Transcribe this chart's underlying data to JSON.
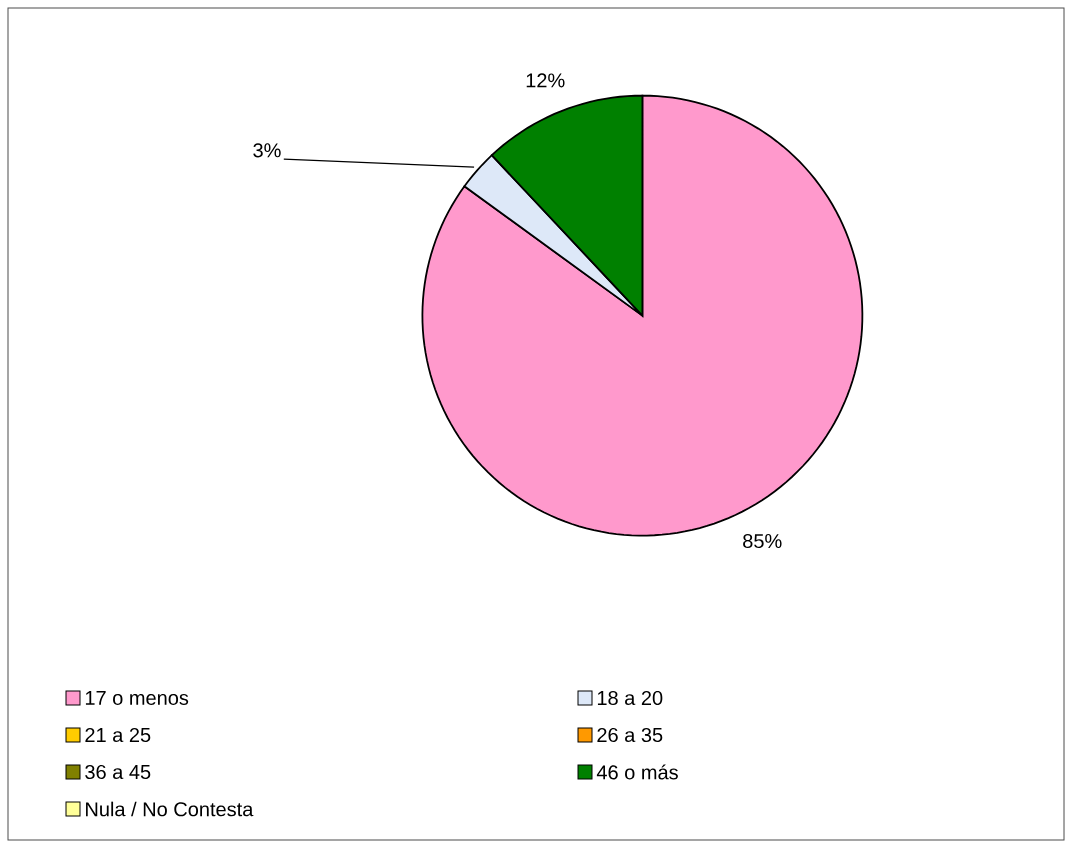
{
  "chart_data": {
    "type": "pie",
    "categories": [
      "17 o menos",
      "18 a 20",
      "21 a 25",
      "26 a 35",
      "36 a 45",
      "46 o más",
      "Nula / No Contesta"
    ],
    "values": [
      85,
      3,
      0,
      0,
      0,
      12,
      0
    ],
    "colors": [
      "#ff99cc",
      "#dde8f8",
      "#ffcc00",
      "#ff9900",
      "#808000",
      "#008000",
      "#ffff99"
    ],
    "value_labels": [
      "85%",
      "3%",
      null,
      null,
      null,
      "12%",
      null
    ],
    "legend": "bottom"
  }
}
